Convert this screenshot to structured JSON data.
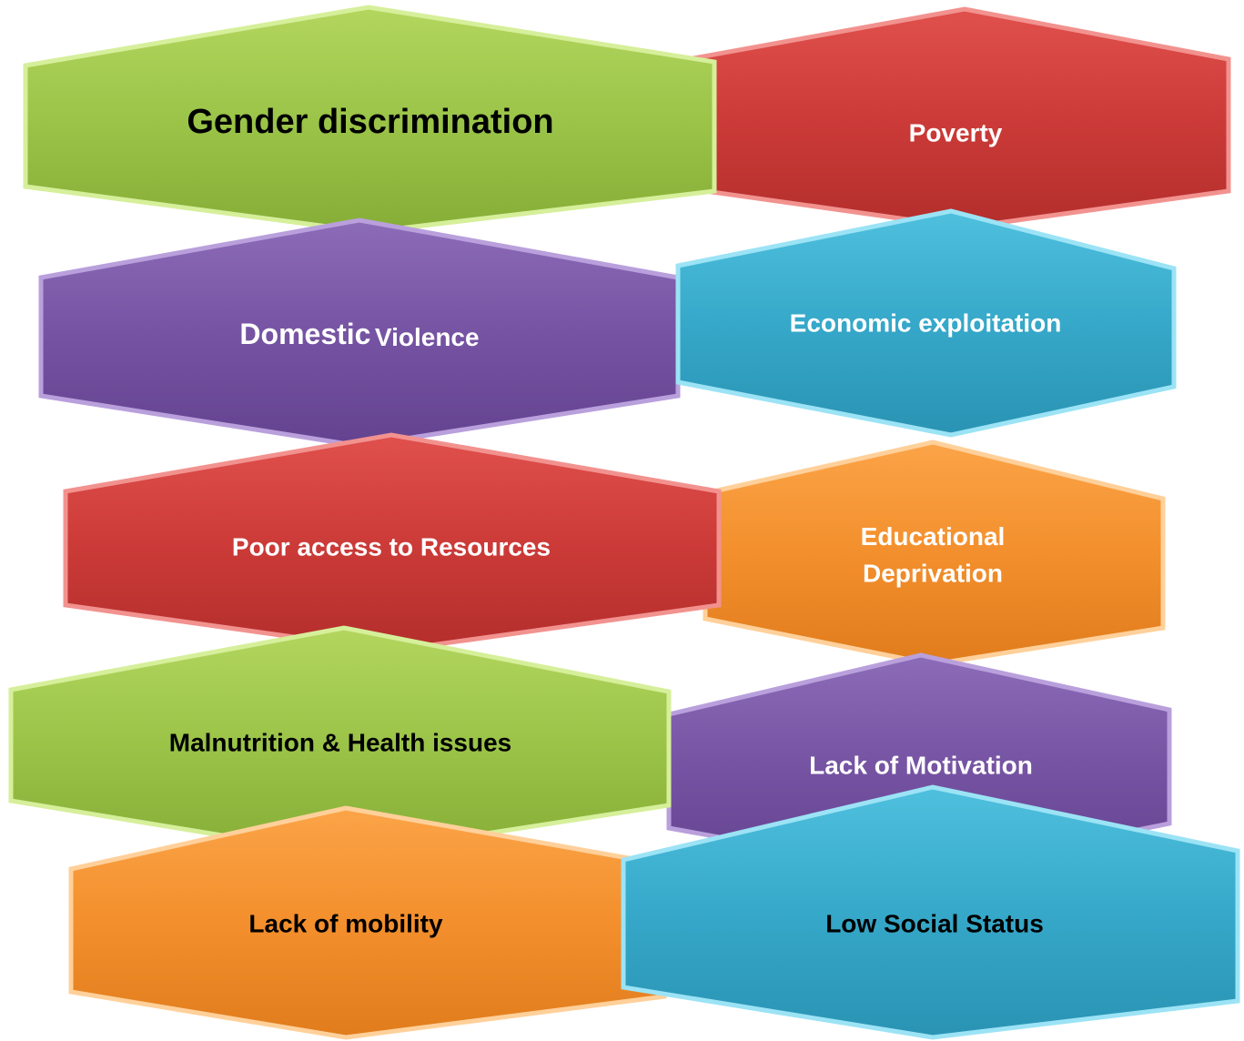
{
  "nodes": [
    {
      "lines": [
        "Poverty"
      ]
    },
    {
      "lines": [
        "Gender discrimination"
      ]
    },
    {
      "parts": [
        "Domestic",
        "Violence"
      ]
    },
    {
      "lines": [
        "Economic exploitation"
      ]
    },
    {
      "lines": [
        "Educational",
        "Deprivation"
      ]
    },
    {
      "lines": [
        "Poor access to Resources"
      ]
    },
    {
      "lines": [
        "Lack of Motivation"
      ]
    },
    {
      "lines": [
        "Malnutrition & Health issues"
      ]
    },
    {
      "lines": [
        "Lack of mobility"
      ]
    },
    {
      "lines": [
        "Low Social Status"
      ]
    }
  ]
}
